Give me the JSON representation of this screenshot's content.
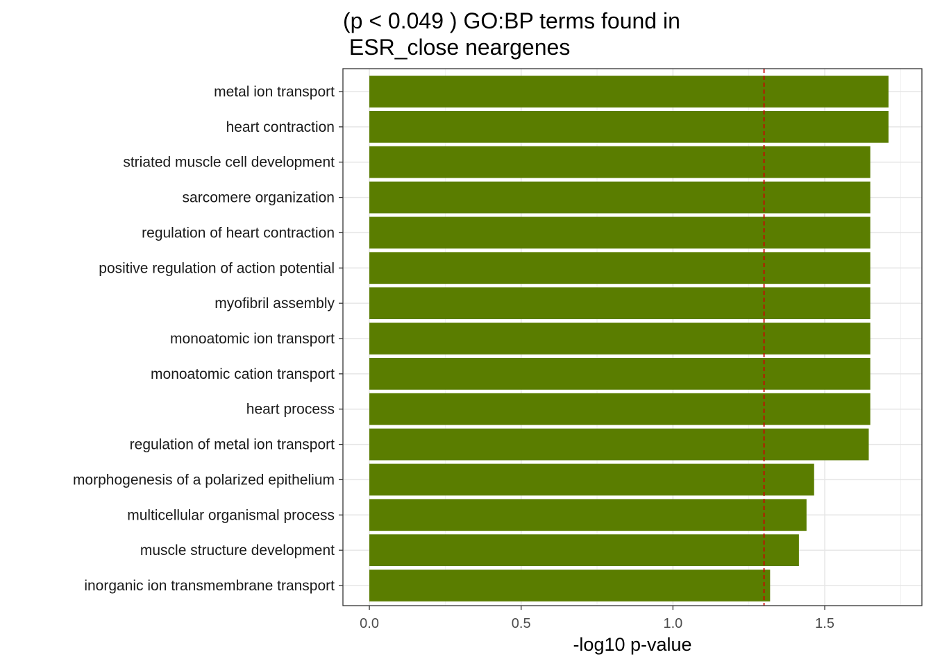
{
  "chart_data": {
    "type": "bar",
    "orientation": "horizontal",
    "title_lines": [
      "(p < 0.049 ) GO:BP terms found in",
      " ESR_close neargenes"
    ],
    "xlabel": "-log10 p-value",
    "ylabel": "",
    "xlim": [
      -0.087,
      1.82
    ],
    "x_ticks": [
      0.0,
      0.5,
      1.0,
      1.5
    ],
    "x_tick_labels": [
      "0.0",
      "0.5",
      "1.0",
      "1.5"
    ],
    "grid": true,
    "threshold_line": {
      "value": 1.3,
      "color": "#cc0000",
      "style": "dashed"
    },
    "bar_color": "#5a7d00",
    "categories": [
      "metal ion transport",
      "heart contraction",
      "striated muscle cell development",
      "sarcomere organization",
      "regulation of heart contraction",
      "positive regulation of action potential",
      "myofibril assembly",
      "monoatomic ion transport",
      "monoatomic cation transport",
      "heart process",
      "regulation of metal ion transport",
      "morphogenesis of a polarized epithelium",
      "multicellular organismal process",
      "muscle structure development",
      "inorganic ion transmembrane transport"
    ],
    "values": [
      1.71,
      1.71,
      1.65,
      1.65,
      1.65,
      1.65,
      1.65,
      1.65,
      1.65,
      1.65,
      1.645,
      1.465,
      1.44,
      1.415,
      1.32
    ]
  }
}
